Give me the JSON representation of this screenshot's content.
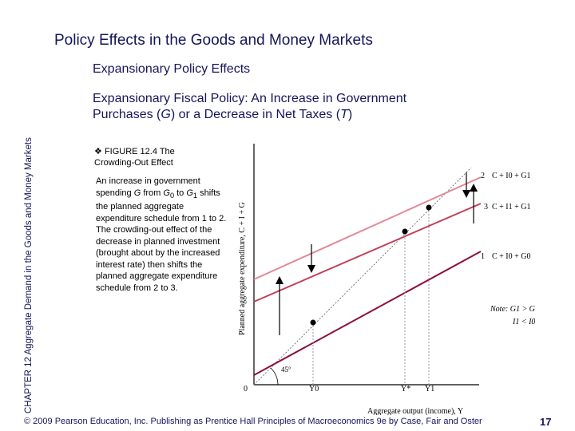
{
  "slide": {
    "title": "Policy Effects in the Goods and Money Markets",
    "section": "Expansionary Policy Effects",
    "sidebar": "CHAPTER 12  Aggregate Demand in the Goods and Money Markets",
    "subtitle_part1": "Expansionary Fiscal Policy: An Increase in Government Purchases (",
    "subtitle_G": "G",
    "subtitle_part2": ") or a Decrease in Net Taxes (",
    "subtitle_T": "T",
    "subtitle_part3": ")",
    "footer": "© 2009 Pearson Education, Inc. Publishing as Prentice Hall  Principles of Macroeconomics 9e by Case, Fair and Oster",
    "page_number": "17"
  },
  "figure": {
    "bullet_icon": "circled-bullet-icon",
    "caption_line1": "FIGURE 12.4  The",
    "caption_line2": "Crowding-Out Effect",
    "description_html": "An increase in government spending <i>G</i> from <i>G</i><sub>0</sub> to <i>G</i><sub>1</sub> shifts the planned aggregate expenditure schedule from 1 to 2.<br>The crowding-out effect of the decrease in planned investment (brought about by the increased interest rate) then shifts the planned aggregate expenditure schedule from 2 to 3."
  },
  "diagram": {
    "y_axis_label": "Planned aggregate expenditure, C + I + G",
    "x_axis_label": "Aggregate output (income), Y",
    "origin_label": "0",
    "angle_label": "45°",
    "x_ticks": [
      "Y0",
      "Y*",
      "Y1"
    ],
    "lines": [
      {
        "id": "1",
        "label": "C + I0 + G0",
        "color": "#8b1040"
      },
      {
        "id": "2",
        "label": "C + I0 + G1",
        "color": "#e08a98"
      },
      {
        "id": "3",
        "label": "C + I1 + G1",
        "color": "#c04058"
      }
    ],
    "note_line1": "Note: G1 > G0",
    "note_line2": "I1 < I0",
    "colors": {
      "title": "#15155a",
      "line1": "#8b1040",
      "line2": "#e08a98",
      "line3": "#c04058",
      "guide": "#9a9a9a"
    }
  }
}
